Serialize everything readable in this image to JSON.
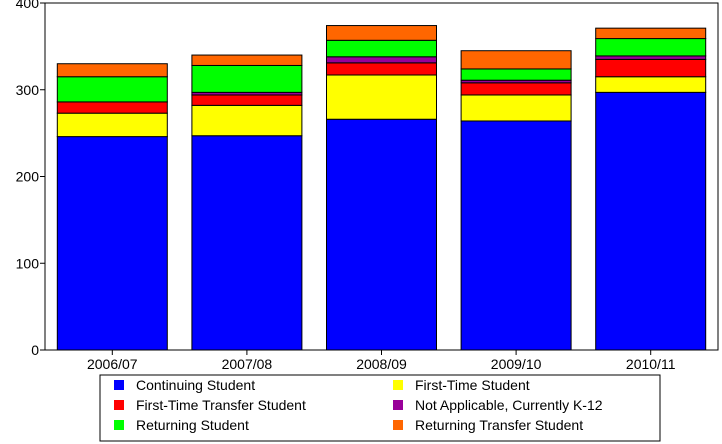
{
  "chart_data": {
    "type": "bar",
    "stacked": true,
    "categories": [
      "2006/07",
      "2007/08",
      "2008/09",
      "2009/10",
      "2010/11"
    ],
    "series": [
      {
        "name": "Continuing Student",
        "color": "#0000ff",
        "values": [
          246,
          247,
          266,
          264,
          297
        ]
      },
      {
        "name": "First-Time Student",
        "color": "#ffff00",
        "values": [
          27,
          35,
          51,
          30,
          18
        ]
      },
      {
        "name": "First-Time Transfer Student",
        "color": "#ff0000",
        "values": [
          13,
          12,
          14,
          14,
          20
        ]
      },
      {
        "name": "Not Applicable, Currently K-12",
        "color": "#990099",
        "values": [
          0,
          3,
          7,
          3,
          4
        ]
      },
      {
        "name": "Returning Student",
        "color": "#00ff00",
        "values": [
          29,
          31,
          19,
          13,
          20
        ]
      },
      {
        "name": "Returning Transfer Student",
        "color": "#ff6600",
        "values": [
          15,
          12,
          17,
          21,
          12
        ]
      }
    ],
    "y_ticks": [
      0,
      100,
      200,
      300,
      400
    ],
    "ylim": [
      0,
      400
    ],
    "title": "",
    "xlabel": "",
    "ylabel": "",
    "grid": false,
    "legend_position": "bottom"
  }
}
